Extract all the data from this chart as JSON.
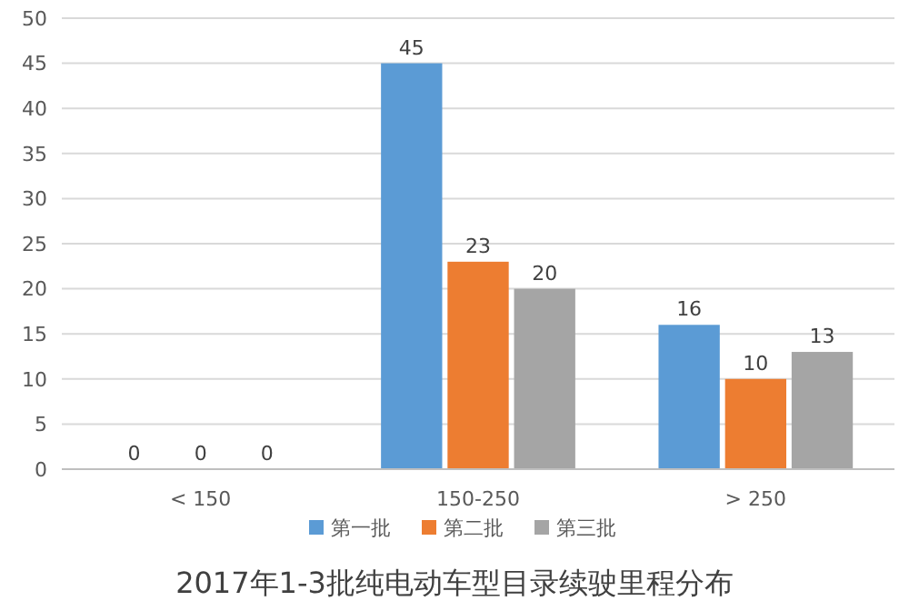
{
  "chart_data": {
    "type": "bar",
    "title": "2017年1-3批纯电动车型目录续驶里程分布",
    "categories": [
      "< 150",
      "150-250",
      "> 250"
    ],
    "series": [
      {
        "name": "第一批",
        "color": "#5b9bd5",
        "values": [
          0,
          45,
          16
        ]
      },
      {
        "name": "第二批",
        "color": "#ed7d31",
        "values": [
          0,
          23,
          10
        ]
      },
      {
        "name": "第三批",
        "color": "#a5a5a5",
        "values": [
          0,
          20,
          13
        ]
      }
    ],
    "ylim": [
      0,
      50
    ],
    "yticks": [
      0,
      5,
      10,
      15,
      20,
      25,
      30,
      35,
      40,
      45,
      50
    ],
    "grid": "y",
    "legend": "bottom",
    "data_labels": true
  }
}
